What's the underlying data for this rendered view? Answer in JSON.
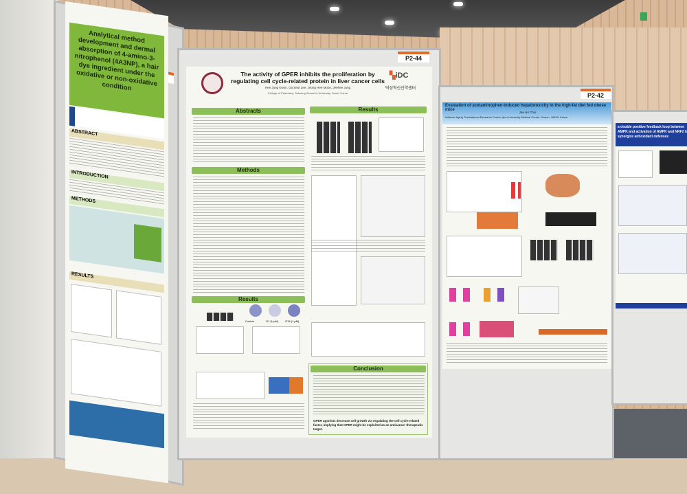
{
  "posters": {
    "left": {
      "title": "Analytical method development and dermal absorption of 4-amino-3-nitrophenol (4A3NP), a hair dye ingredient under the oxidative or non-oxidative condition",
      "sections": [
        "ABSTRACT",
        "INTRODUCTION",
        "METHODS",
        "RESULTS"
      ],
      "title_color": "#7fb83a"
    },
    "center": {
      "board_label": "P2-44",
      "title": "The activity of GPER inhibits the proliferation by regulating cell cycle-related protein in liver cancer cells",
      "authors": "Hee Jung Kwon, Ga Seul Lee, Jeong Hee Moon, Jeehee Jung",
      "affiliation": "College of Pharmacy, Duksung Women's University, Seoul, Korea",
      "logo_text": "iDC",
      "logo_subtext": "덕성혁신신약센터",
      "sections": {
        "abstracts": "Abstracts",
        "methods": "Methods",
        "results": "Results",
        "results2": "Results",
        "conclusion": "Conclusion"
      },
      "figure_labels": {
        "control": "Control",
        "g1": "G1 (1 μM)",
        "g15": "G15 (1 μM)"
      },
      "conclusion_highlight": "GPER agonists decrease cell growth via regulating the cell cycle-related factor, implying that GPER might be exploited as an anticancer therapeutic target.",
      "section_color": "#8cbf5a"
    },
    "right": {
      "board_label": "P2-42",
      "title": "Evaluation of acetaminophen-induced hepatotoxicity in the high-fat diet fed obese mice",
      "author": "Jae Ho Choi",
      "affiliation": "Inflamm-Aging Translational Research Center, Ajou University Medical Center, Suwon, 16499, Korea",
      "title_color": "#2f7fc8"
    },
    "far_right": {
      "title": "a double positive feedback loop between AMPK and activation of AMPK and NRF2 to synergize antioxidant defenses",
      "title_color": "#1f3f9a"
    }
  }
}
